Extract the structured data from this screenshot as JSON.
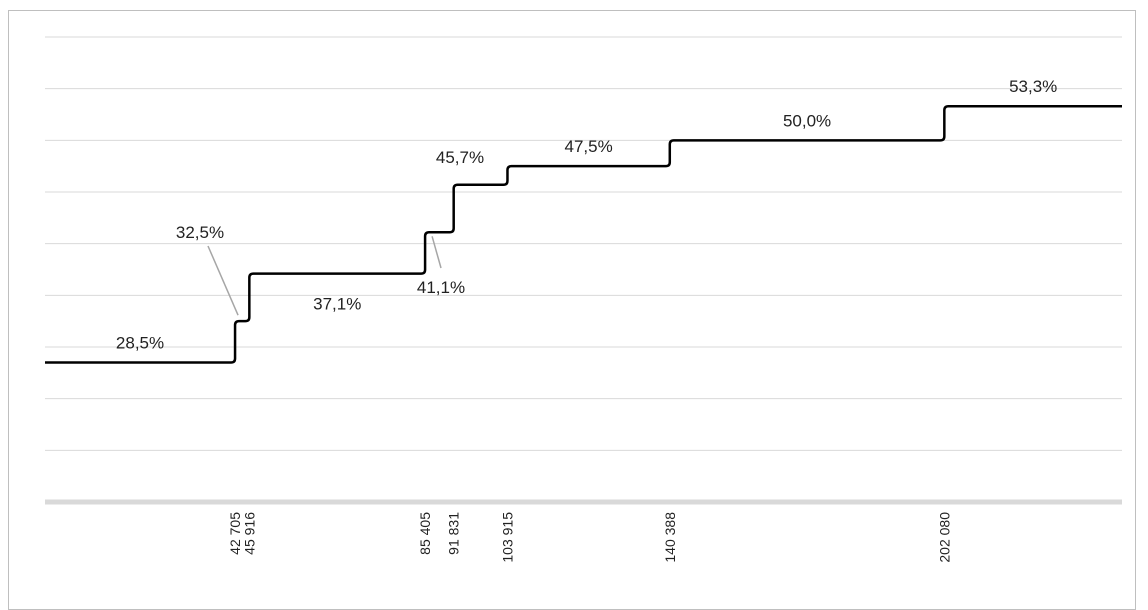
{
  "chart_data": {
    "type": "line",
    "step": true,
    "title": "",
    "xlabel": "",
    "ylabel": "",
    "xlim": [
      0,
      242000
    ],
    "ylim": [
      15,
      60
    ],
    "grid": true,
    "thresholds": [
      42705,
      45916,
      85405,
      91831,
      103915,
      140388,
      202080
    ],
    "tick_labels": [
      "42 705",
      "45 916",
      "85 405",
      "91 831",
      "103 915",
      "140 388",
      "202 080"
    ],
    "series": [
      {
        "color": "#000000",
        "points": [
          {
            "x": 0,
            "y": 28.5
          },
          {
            "x": 42705,
            "y": 32.5
          },
          {
            "x": 45916,
            "y": 37.1
          },
          {
            "x": 85405,
            "y": 41.1
          },
          {
            "x": 91831,
            "y": 45.7
          },
          {
            "x": 103915,
            "y": 47.5
          },
          {
            "x": 140388,
            "y": 50.0
          },
          {
            "x": 202080,
            "y": 53.3
          }
        ]
      }
    ],
    "data_labels": [
      "28,5%",
      "32,5%",
      "37,1%",
      "41,1%",
      "45,7%",
      "47,5%",
      "50,0%",
      "53,3%"
    ]
  }
}
